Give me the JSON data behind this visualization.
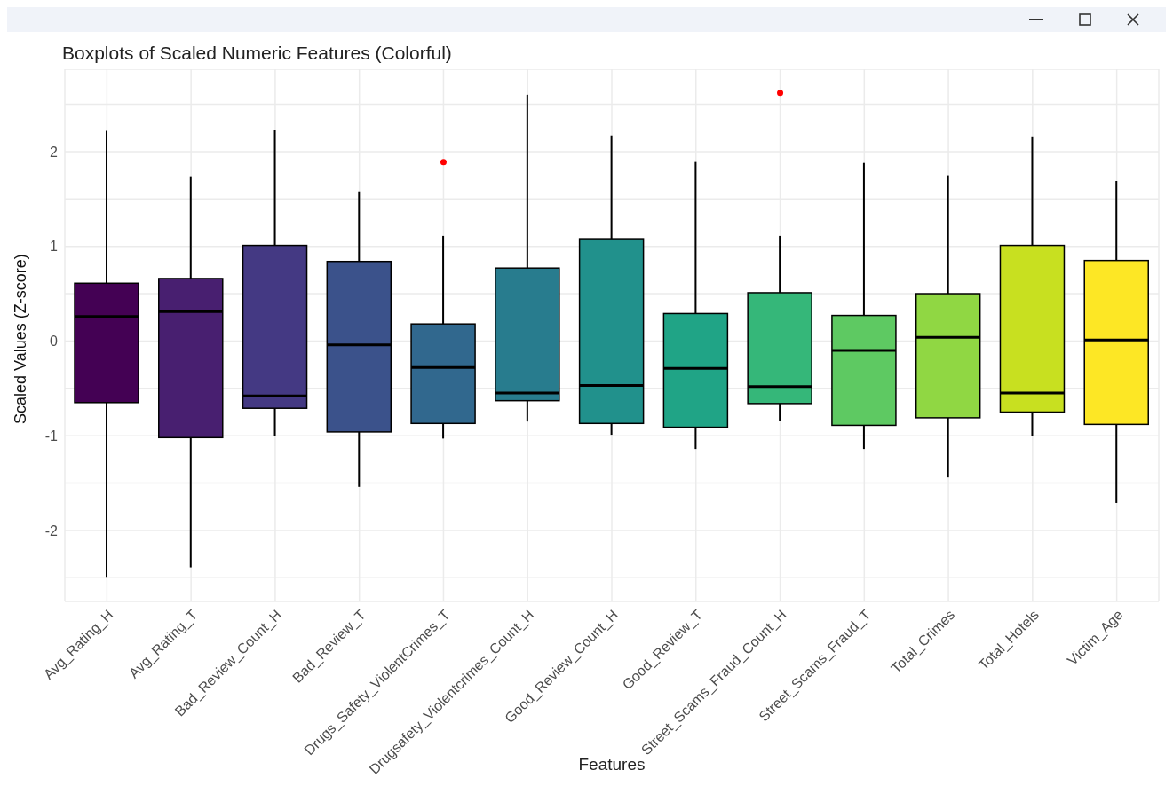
{
  "chart_data": {
    "type": "box",
    "title": "Boxplots of Scaled Numeric Features (Colorful)",
    "xlabel": "Features",
    "ylabel": "Scaled Values (Z-score)",
    "categories": [
      "Avg_Rating_H",
      "Avg_Rating_T",
      "Bad_Review_Count_H",
      "Bad_Review_T",
      "Drugs_Safety_ViolentCrimes_T",
      "Drugsafety_Violentcrimes_Count_H",
      "Good_Review_Count_H",
      "Good_Review_T",
      "Street_Scams_Fraud_Count_H",
      "Street_Scams_Fraud_T",
      "Total_Crimes",
      "Total_Hotels",
      "Victim_Age"
    ],
    "colors": [
      "#440154",
      "#481f70",
      "#443983",
      "#3b528b",
      "#31688e",
      "#287c8e",
      "#21918c",
      "#20a486",
      "#35b779",
      "#5ec962",
      "#90d743",
      "#c8e020",
      "#fde725"
    ],
    "boxes": [
      {
        "low": -2.49,
        "q1": -0.65,
        "median": 0.26,
        "q3": 0.61,
        "high": 2.22
      },
      {
        "low": -2.39,
        "q1": -1.02,
        "median": 0.31,
        "q3": 0.66,
        "high": 1.74
      },
      {
        "low": -1.0,
        "q1": -0.71,
        "median": -0.58,
        "q3": 1.01,
        "high": 2.23
      },
      {
        "low": -1.54,
        "q1": -0.96,
        "median": -0.04,
        "q3": 0.84,
        "high": 1.58
      },
      {
        "low": -1.03,
        "q1": -0.87,
        "median": -0.28,
        "q3": 0.18,
        "high": 1.11,
        "outliers": [
          1.89
        ]
      },
      {
        "low": -0.85,
        "q1": -0.63,
        "median": -0.55,
        "q3": 0.77,
        "high": 2.6
      },
      {
        "low": -0.99,
        "q1": -0.87,
        "median": -0.47,
        "q3": 1.08,
        "high": 2.17
      },
      {
        "low": -1.14,
        "q1": -0.91,
        "median": -0.29,
        "q3": 0.29,
        "high": 1.89
      },
      {
        "low": -0.84,
        "q1": -0.66,
        "median": -0.48,
        "q3": 0.51,
        "high": 1.11,
        "outliers": [
          2.62
        ]
      },
      {
        "low": -1.14,
        "q1": -0.89,
        "median": -0.1,
        "q3": 0.27,
        "high": 1.88
      },
      {
        "low": -1.44,
        "q1": -0.81,
        "median": 0.04,
        "q3": 0.5,
        "high": 1.75
      },
      {
        "low": -1.0,
        "q1": -0.75,
        "median": -0.55,
        "q3": 1.01,
        "high": 2.16
      },
      {
        "low": -1.71,
        "q1": -0.88,
        "median": 0.01,
        "q3": 0.85,
        "high": 1.69
      }
    ],
    "ylim": [
      -2.75,
      2.87
    ],
    "yticks": [
      {
        "value": -2.5,
        "label": null
      },
      -2,
      {
        "value": -1.5,
        "label": null
      },
      -1,
      {
        "value": -0.5,
        "label": null
      },
      0,
      {
        "value": 0.5,
        "label": null
      },
      1,
      {
        "value": 1.5,
        "label": null
      },
      2,
      {
        "value": 2.5,
        "label": null
      }
    ],
    "grid": true,
    "legend": false
  }
}
